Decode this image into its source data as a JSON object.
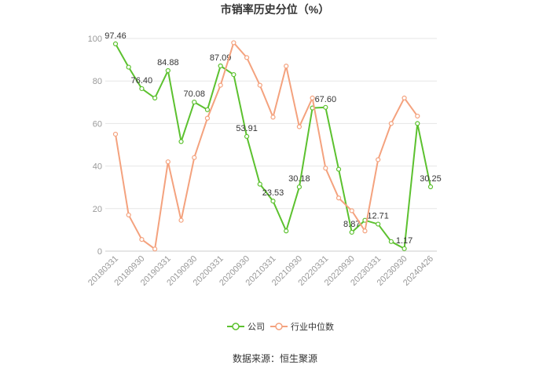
{
  "chart_data": {
    "type": "line",
    "title": "市销率历史分位（%）",
    "categories": [
      "20180331",
      null,
      "20180930",
      null,
      "20190331",
      null,
      "20190930",
      null,
      "20200331",
      null,
      "20200930",
      null,
      "20210331",
      null,
      "20210930",
      null,
      "20220331",
      null,
      "20220930",
      null,
      "20230331",
      null,
      "20230930",
      null,
      "20240426"
    ],
    "series": [
      {
        "name": "公司",
        "color": "#5cc12f",
        "values": [
          97.46,
          86.5,
          76.4,
          72,
          84.88,
          51.5,
          70.08,
          66.5,
          87.09,
          83,
          53.91,
          31.5,
          23.53,
          9.5,
          30.18,
          67.3,
          67.6,
          38.5,
          8.87,
          14.5,
          12.71,
          4.5,
          1.17,
          60,
          30.25
        ],
        "value_labels": [
          "97.46",
          null,
          "76.40",
          null,
          "84.88",
          null,
          "70.08",
          null,
          "87.09",
          null,
          "53.91",
          null,
          "23.53",
          null,
          "30.18",
          null,
          "67.60",
          null,
          "8.87",
          null,
          "12.71",
          null,
          "1.17",
          null,
          "30.25"
        ]
      },
      {
        "name": "行业中位数",
        "color": "#f4a27e",
        "values": [
          55,
          17,
          5.5,
          1,
          42,
          14.5,
          44,
          62.5,
          78,
          98,
          91,
          78,
          63,
          87,
          58.5,
          72,
          39,
          25,
          19,
          9.5,
          43,
          60,
          72,
          63.5,
          null
        ]
      }
    ],
    "ylim": [
      0,
      100
    ],
    "yticks": [
      0,
      20,
      40,
      60,
      80,
      100
    ],
    "grid": true,
    "source": "数据来源：恒生聚源"
  }
}
